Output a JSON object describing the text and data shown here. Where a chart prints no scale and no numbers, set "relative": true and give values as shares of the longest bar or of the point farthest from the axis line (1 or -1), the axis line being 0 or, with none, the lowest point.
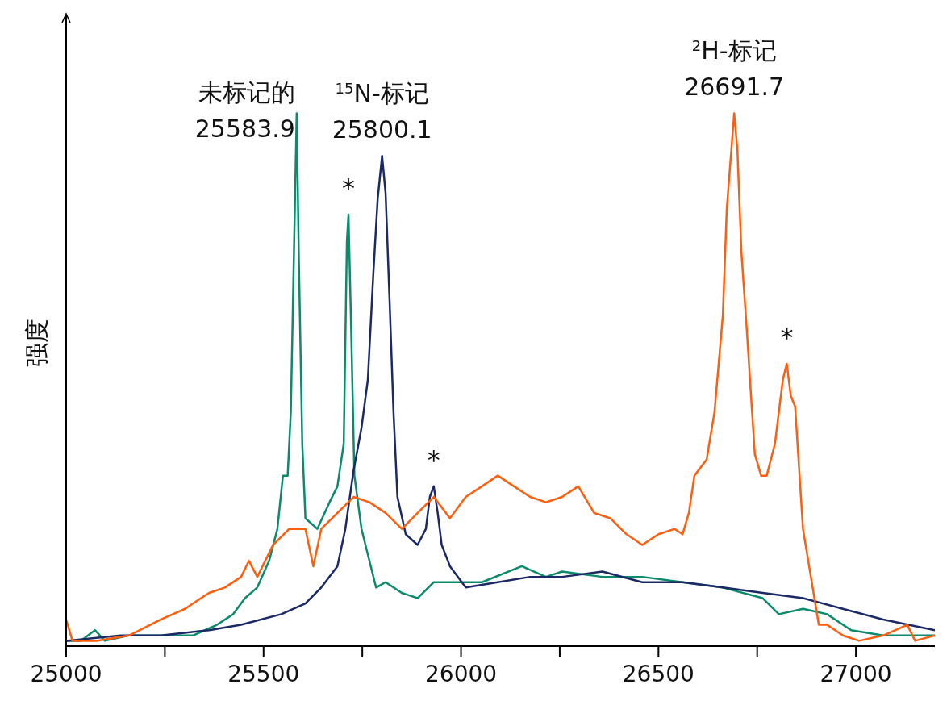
{
  "chart_data": {
    "type": "line",
    "relative": true,
    "ylabel": "强度",
    "xlim": [
      25000,
      27200
    ],
    "xticks": [
      25000,
      {
        "value": 25250,
        "label": null
      },
      25500,
      {
        "value": 25750,
        "label": null
      },
      26000,
      {
        "value": 26250,
        "label": null
      },
      26500,
      {
        "value": 26750,
        "label": null
      },
      27000
    ],
    "series": [
      {
        "color": "#0b8a6c",
        "x": [
          25000,
          25037,
          25073,
          25098,
          25159,
          25240,
          25321,
          25382,
          25423,
          25453,
          25484,
          25514,
          25535,
          25549,
          25561,
          25569,
          25577,
          25583.9,
          25589,
          25598,
          25606,
          25636,
          25667,
          25687,
          25703,
          25711,
          25715,
          25722,
          25730,
          25748,
          25768,
          25785,
          25809,
          25850,
          25890,
          25931,
          25972,
          26053,
          26154,
          26215,
          26256,
          26358,
          26459,
          26561,
          26663,
          26764,
          26805,
          26866,
          26927,
          26988,
          27069,
          27200
        ],
        "values": [
          0.01,
          0.01,
          0.03,
          0.01,
          0.02,
          0.02,
          0.02,
          0.04,
          0.06,
          0.09,
          0.11,
          0.16,
          0.22,
          0.32,
          0.32,
          0.44,
          0.74,
          1,
          0.74,
          0.38,
          0.24,
          0.22,
          0.27,
          0.3,
          0.38,
          0.76,
          0.81,
          0.59,
          0.32,
          0.22,
          0.16,
          0.11,
          0.12,
          0.1,
          0.09,
          0.12,
          0.12,
          0.12,
          0.15,
          0.13,
          0.14,
          0.13,
          0.13,
          0.12,
          0.11,
          0.09,
          0.06,
          0.07,
          0.06,
          0.03,
          0.02,
          0.02
        ]
      },
      {
        "color": "#1b2a66",
        "x": [
          25000,
          25138,
          25240,
          25362,
          25443,
          25545,
          25606,
          25646,
          25687,
          25707,
          25728,
          25748,
          25764,
          25778,
          25789,
          25800.1,
          25809,
          25819,
          25829,
          25839,
          25860,
          25890,
          25911,
          25921,
          25931,
          25941,
          25951,
          25972,
          26012,
          26093,
          26175,
          26256,
          26358,
          26459,
          26561,
          26663,
          26764,
          26866,
          26967,
          27069,
          27200
        ],
        "values": [
          0.01,
          0.02,
          0.02,
          0.03,
          0.04,
          0.06,
          0.08,
          0.11,
          0.15,
          0.22,
          0.33,
          0.41,
          0.5,
          0.7,
          0.84,
          0.92,
          0.85,
          0.65,
          0.44,
          0.28,
          0.21,
          0.19,
          0.22,
          0.28,
          0.3,
          0.25,
          0.19,
          0.15,
          0.11,
          0.12,
          0.13,
          0.13,
          0.14,
          0.12,
          0.12,
          0.11,
          0.1,
          0.09,
          0.07,
          0.05,
          0.03
        ]
      },
      {
        "color": "#ff5e0e",
        "x": [
          25000,
          25016,
          25077,
          25159,
          25240,
          25301,
          25362,
          25402,
          25443,
          25463,
          25484,
          25524,
          25565,
          25606,
          25626,
          25646,
          25687,
          25728,
          25768,
          25809,
          25850,
          25890,
          25931,
          25972,
          26012,
          26053,
          26093,
          26134,
          26175,
          26215,
          26256,
          26297,
          26337,
          26378,
          26419,
          26459,
          26500,
          26541,
          26561,
          26577,
          26591,
          26622,
          26642,
          26663,
          26673,
          26691.7,
          26700,
          26710,
          26724,
          26744,
          26760,
          26774,
          26795,
          26815,
          26825,
          26835,
          26846,
          26866,
          26886,
          26906,
          26927,
          26967,
          27008,
          27069,
          27130,
          27150,
          27200
        ],
        "values": [
          0.05,
          0.01,
          0.01,
          0.02,
          0.05,
          0.07,
          0.1,
          0.11,
          0.13,
          0.16,
          0.13,
          0.19,
          0.22,
          0.22,
          0.15,
          0.22,
          0.25,
          0.28,
          0.27,
          0.25,
          0.22,
          0.25,
          0.28,
          0.24,
          0.28,
          0.3,
          0.32,
          0.3,
          0.28,
          0.27,
          0.28,
          0.3,
          0.25,
          0.24,
          0.21,
          0.19,
          0.21,
          0.22,
          0.21,
          0.25,
          0.32,
          0.35,
          0.44,
          0.62,
          0.82,
          1,
          0.93,
          0.74,
          0.59,
          0.36,
          0.32,
          0.32,
          0.38,
          0.5,
          0.53,
          0.47,
          0.45,
          0.22,
          0.13,
          0.04,
          0.04,
          0.02,
          0.01,
          0.02,
          0.04,
          0.01,
          0.02
        ]
      }
    ],
    "annotations": [
      {
        "text": "未标记的\n25583.9",
        "x": 25583.9,
        "y": 1
      },
      {
        "text": "$^{15}$N-标记\n25800.1",
        "x": 25800.1,
        "y": 0.92
      },
      {
        "text": "$^{2}$H-标记\n26691.7",
        "x": 26691.7,
        "y": 1
      },
      {
        "text": "*",
        "x": 25715,
        "y": 0.81
      },
      {
        "text": "*",
        "x": 25931,
        "y": 0.3
      },
      {
        "text": "*",
        "x": 26825,
        "y": 0.53
      }
    ]
  }
}
